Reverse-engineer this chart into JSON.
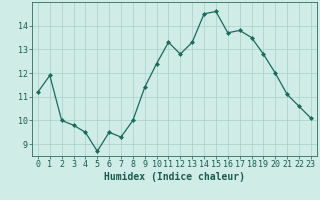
{
  "x": [
    0,
    1,
    2,
    3,
    4,
    5,
    6,
    7,
    8,
    9,
    10,
    11,
    12,
    13,
    14,
    15,
    16,
    17,
    18,
    19,
    20,
    21,
    22,
    23
  ],
  "y": [
    11.2,
    11.9,
    10.0,
    9.8,
    9.5,
    8.7,
    9.5,
    9.3,
    10.0,
    11.4,
    12.4,
    13.3,
    12.8,
    13.3,
    14.5,
    14.6,
    13.7,
    13.8,
    13.5,
    12.8,
    12.0,
    11.1,
    10.6,
    10.1
  ],
  "line_color": "#1a6b5a",
  "marker": "D",
  "marker_size": 2.0,
  "bg_color": "#d0ece6",
  "grid_color": "#a8cfc5",
  "xlabel": "Humidex (Indice chaleur)",
  "xlim": [
    -0.5,
    23.5
  ],
  "ylim": [
    8.5,
    15.0
  ],
  "yticks": [
    9,
    10,
    11,
    12,
    13,
    14
  ],
  "xticks": [
    0,
    1,
    2,
    3,
    4,
    5,
    6,
    7,
    8,
    9,
    10,
    11,
    12,
    13,
    14,
    15,
    16,
    17,
    18,
    19,
    20,
    21,
    22,
    23
  ],
  "xlabel_fontsize": 7,
  "tick_fontsize": 6,
  "axis_color": "#2e6b5e",
  "text_color": "#1a5c4e"
}
